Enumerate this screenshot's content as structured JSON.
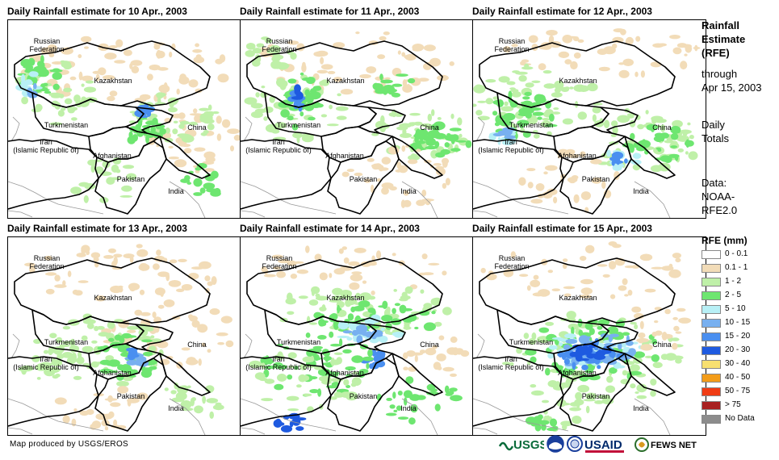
{
  "panels": [
    {
      "title": "Daily Rainfall estimate for 10 Apr., 2003",
      "day": 10
    },
    {
      "title": "Daily Rainfall estimate for 11 Apr., 2003",
      "day": 11
    },
    {
      "title": "Daily Rainfall estimate for 12 Apr., 2003",
      "day": 12
    },
    {
      "title": "Daily Rainfall estimate for 13 Apr., 2003",
      "day": 13
    },
    {
      "title": "Daily Rainfall estimate for 14 Apr., 2003",
      "day": 14
    },
    {
      "title": "Daily Rainfall estimate for 15 Apr., 2003",
      "day": 15
    }
  ],
  "map_labels": {
    "russia": "Russian\nFederation",
    "kazakhstan": "Kazakhstan",
    "turkmenistan": "Turkmenistan",
    "iran": "Iran\n(Islamic Republic of)",
    "afghanistan": "Afghanistan",
    "pakistan": "Pakistan",
    "china": "China",
    "india": "India"
  },
  "side_text": {
    "heading_line1": "Rainfall",
    "heading_line2": "Estimate",
    "heading_line3": "(RFE)",
    "through_line1": "through",
    "through_line2": "Apr 15, 2003",
    "totals_line1": "Daily",
    "totals_line2": "Totals",
    "data_line1": "Data:",
    "data_line2": "NOAA-",
    "data_line3": "RFE2.0"
  },
  "legend": {
    "title": "RFE (mm)",
    "items": [
      {
        "label": "0 - 0.1",
        "color": "#ffffff"
      },
      {
        "label": "0.1 - 1",
        "color": "#f2dcb8"
      },
      {
        "label": "1 - 2",
        "color": "#bff0a8"
      },
      {
        "label": "2 - 5",
        "color": "#6ee670"
      },
      {
        "label": "5 - 10",
        "color": "#b8f0f6"
      },
      {
        "label": "10 - 15",
        "color": "#78b0f0"
      },
      {
        "label": "15 - 20",
        "color": "#4a8ff0"
      },
      {
        "label": "20 - 30",
        "color": "#1e5ae0"
      },
      {
        "label": "30 - 40",
        "color": "#f8e070"
      },
      {
        "label": "40 - 50",
        "color": "#f39c18"
      },
      {
        "label": "50 - 75",
        "color": "#f03c14"
      },
      {
        "label": "> 75",
        "color": "#a82020"
      },
      {
        "label": "No Data",
        "color": "#8c8c8c"
      }
    ]
  },
  "footer": {
    "credit": "Map produced by USGS/EROS"
  },
  "logos": {
    "usgs": "USGS",
    "usaid": "USAID",
    "fews": "FEWS NET"
  },
  "colors": {
    "tan": "#f2dcb8",
    "lightgreen": "#bff0a8",
    "green": "#6ee670",
    "cyan": "#b8f0f6",
    "blue": "#78b0f0",
    "midblue": "#4a8ff0",
    "deepblue": "#1e5ae0"
  }
}
